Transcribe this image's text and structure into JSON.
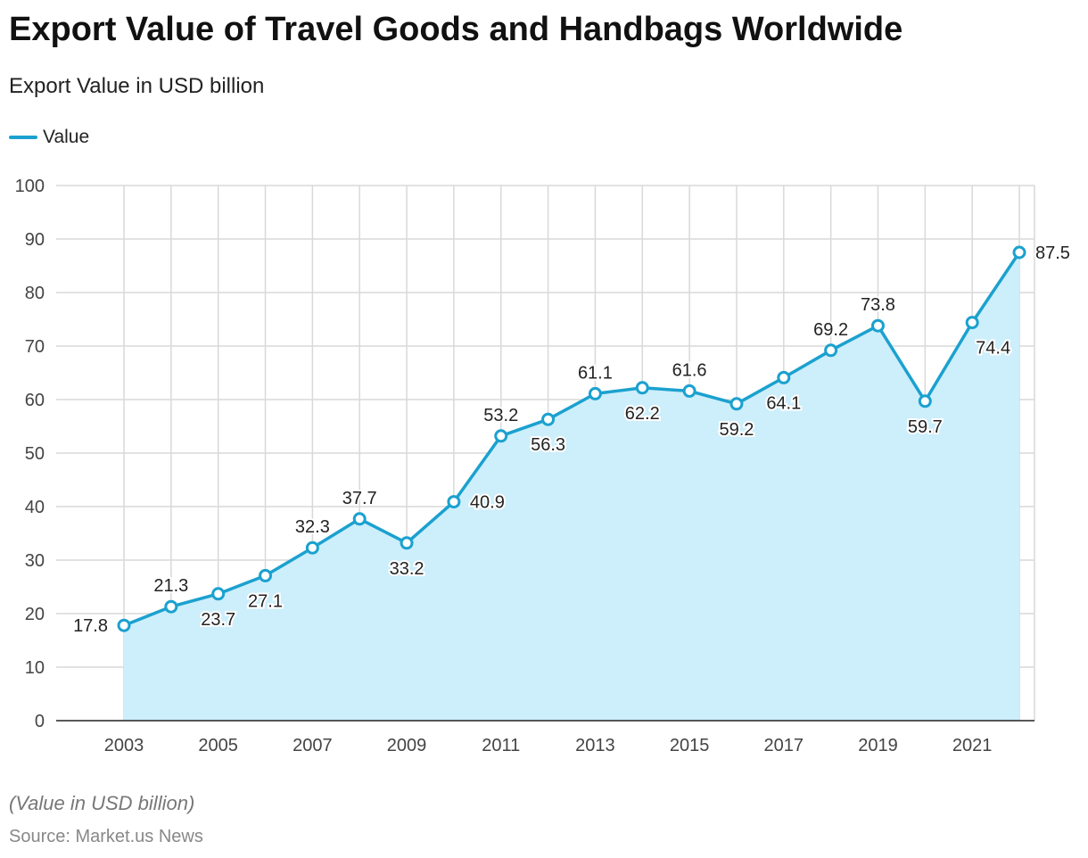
{
  "title": "Export Value of Travel Goods and Handbags Worldwide",
  "subtitle": "Export Value in USD billion",
  "note": "(Value in USD billion)",
  "source": "Source: Market.us News",
  "colors": {
    "line": "#1ba1cf",
    "fill": "#cdeefb"
  },
  "chart_data": {
    "type": "area",
    "title": "Export Value of Travel Goods and Handbags Worldwide",
    "ylabel": "Export Value in USD billion",
    "x": [
      2003,
      2004,
      2005,
      2006,
      2007,
      2008,
      2009,
      2010,
      2011,
      2012,
      2013,
      2014,
      2015,
      2016,
      2017,
      2018,
      2019,
      2020,
      2021,
      2022
    ],
    "series": [
      {
        "name": "Value",
        "values": [
          17.8,
          21.3,
          23.7,
          27.1,
          32.3,
          37.7,
          33.2,
          40.9,
          53.2,
          56.3,
          61.1,
          62.2,
          61.6,
          59.2,
          64.1,
          69.2,
          73.8,
          59.7,
          74.4,
          87.5
        ]
      }
    ],
    "ylim": [
      0,
      100
    ],
    "yticks": [
      0,
      10,
      20,
      30,
      40,
      50,
      60,
      70,
      80,
      90,
      100
    ],
    "xticks": [
      "2003",
      "2005",
      "2007",
      "2009",
      "2011",
      "2013",
      "2015",
      "2017",
      "2019",
      "2021"
    ],
    "grid": true,
    "legend": "top-left"
  }
}
